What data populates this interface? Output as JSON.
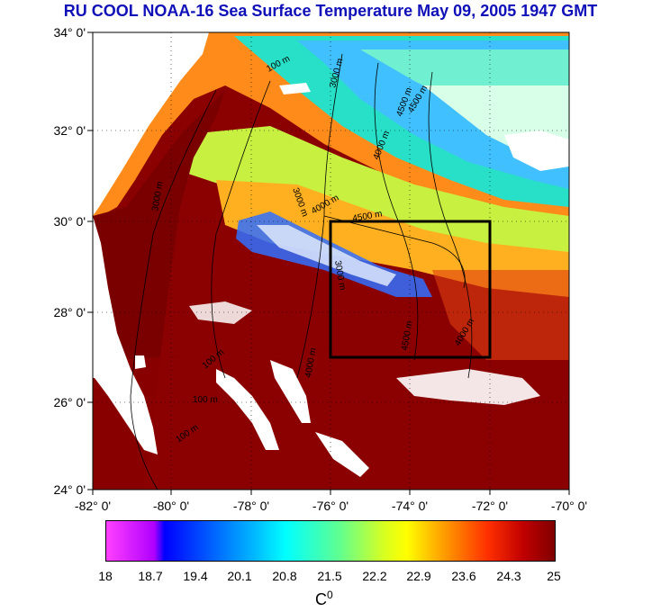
{
  "title": "RU COOL  NOAA-16 Sea Surface Temperature May 09, 2005 1947 GMT",
  "latitude_labels": [
    "34° 0'",
    "32° 0'",
    "30° 0'",
    "28° 0'",
    "26° 0'",
    "24° 0'"
  ],
  "longitude_labels": [
    "-82° 0'",
    "-80° 0'",
    "-78° 0'",
    "-76° 0'",
    "-74° 0'",
    "-72° 0'",
    "-70° 0'"
  ],
  "contour_labels": [
    "100 m",
    "3000 m",
    "4500 m",
    "4000 m",
    "4500 m",
    "3000 m",
    "3000 m",
    "4000 m",
    "4500 m",
    "3000 m",
    "4500 m",
    "4000 m",
    "100 m",
    "100 m",
    "100 m",
    "4000 m"
  ],
  "colorbar": {
    "ticks": [
      "18",
      "18.7",
      "19.4",
      "20.1",
      "20.8",
      "21.5",
      "22.2",
      "22.9",
      "23.6",
      "24.3",
      "25"
    ],
    "unit_base": "C",
    "unit_sup": "0"
  },
  "colors": {
    "title": "#1010b8",
    "warm": "#8b0000",
    "land": "#ffffff",
    "box": "#000000"
  }
}
